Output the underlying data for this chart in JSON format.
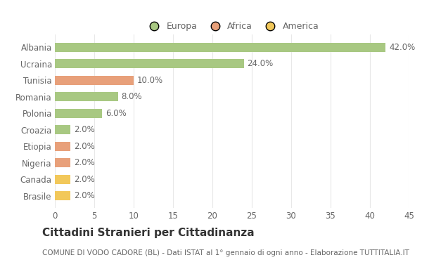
{
  "categories": [
    "Albania",
    "Ucraina",
    "Tunisia",
    "Romania",
    "Polonia",
    "Croazia",
    "Etiopia",
    "Nigeria",
    "Canada",
    "Brasile"
  ],
  "values": [
    42.0,
    24.0,
    10.0,
    8.0,
    6.0,
    2.0,
    2.0,
    2.0,
    2.0,
    2.0
  ],
  "colors": [
    "#a8c882",
    "#a8c882",
    "#e8a07a",
    "#a8c882",
    "#a8c882",
    "#a8c882",
    "#e8a07a",
    "#e8a07a",
    "#f2c85a",
    "#f2c85a"
  ],
  "legend": [
    {
      "label": "Europa",
      "color": "#a8c882"
    },
    {
      "label": "Africa",
      "color": "#e8a07a"
    },
    {
      "label": "America",
      "color": "#f2c85a"
    }
  ],
  "xlim": [
    0,
    45
  ],
  "xticks": [
    0,
    5,
    10,
    15,
    20,
    25,
    30,
    35,
    40,
    45
  ],
  "title": "Cittadini Stranieri per Cittadinanza",
  "subtitle": "COMUNE DI VODO CADORE (BL) - Dati ISTAT al 1° gennaio di ogni anno - Elaborazione TUTTITALIA.IT",
  "background_color": "#ffffff",
  "grid_color": "#e8e8e8",
  "label_color": "#666666",
  "value_label_fontsize": 8.5,
  "category_fontsize": 8.5,
  "title_fontsize": 11,
  "subtitle_fontsize": 7.5
}
